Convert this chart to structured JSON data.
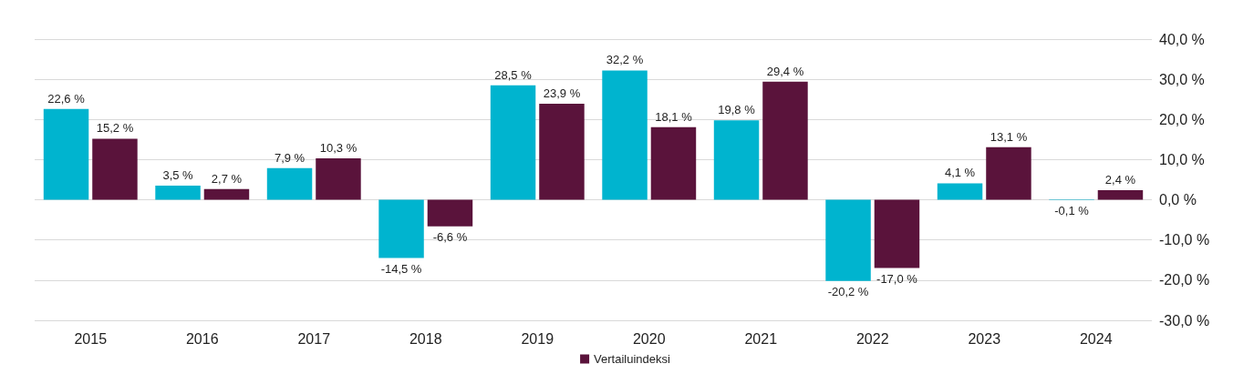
{
  "chart_data": {
    "type": "bar",
    "categories": [
      "2015",
      "2016",
      "2017",
      "2018",
      "2019",
      "2020",
      "2021",
      "2022",
      "2023",
      "2024"
    ],
    "series": [
      {
        "color": "#00b4cf",
        "values": [
          22.6,
          3.5,
          7.9,
          -14.5,
          28.5,
          32.2,
          19.8,
          -20.2,
          4.1,
          -0.1
        ],
        "value_labels": [
          "22,6 %",
          "3,5 %",
          "7,9 %",
          "-14,5 %",
          "28,5 %",
          "32,2 %",
          "19,8 %",
          "-20,2 %",
          "4,1 %",
          "-0,1 %"
        ]
      },
      {
        "name": "Vertailuindeksi",
        "color": "#5a133b",
        "values": [
          15.2,
          2.7,
          10.3,
          -6.6,
          23.9,
          18.1,
          29.4,
          -17.0,
          13.1,
          2.4
        ],
        "value_labels": [
          "15,2 %",
          "2,7 %",
          "10,3 %",
          "-6,6 %",
          "23,9 %",
          "18,1 %",
          "29,4 %",
          "-17,0 %",
          "13,1 %",
          "2,4 %"
        ]
      }
    ],
    "ylim": [
      -30,
      40
    ],
    "yticks": [
      {
        "value": -30,
        "label": "-30,0 %"
      },
      {
        "value": -20,
        "label": "-20,0 %"
      },
      {
        "value": -10,
        "label": "-10,0 %"
      },
      {
        "value": 0,
        "label": "0,0 %"
      },
      {
        "value": 10,
        "label": "10,0 %"
      },
      {
        "value": 20,
        "label": "20,0 %"
      },
      {
        "value": 30,
        "label": "30,0 %"
      },
      {
        "value": 40,
        "label": "40,0 %"
      }
    ],
    "grid": "y",
    "legend": "bottom"
  }
}
